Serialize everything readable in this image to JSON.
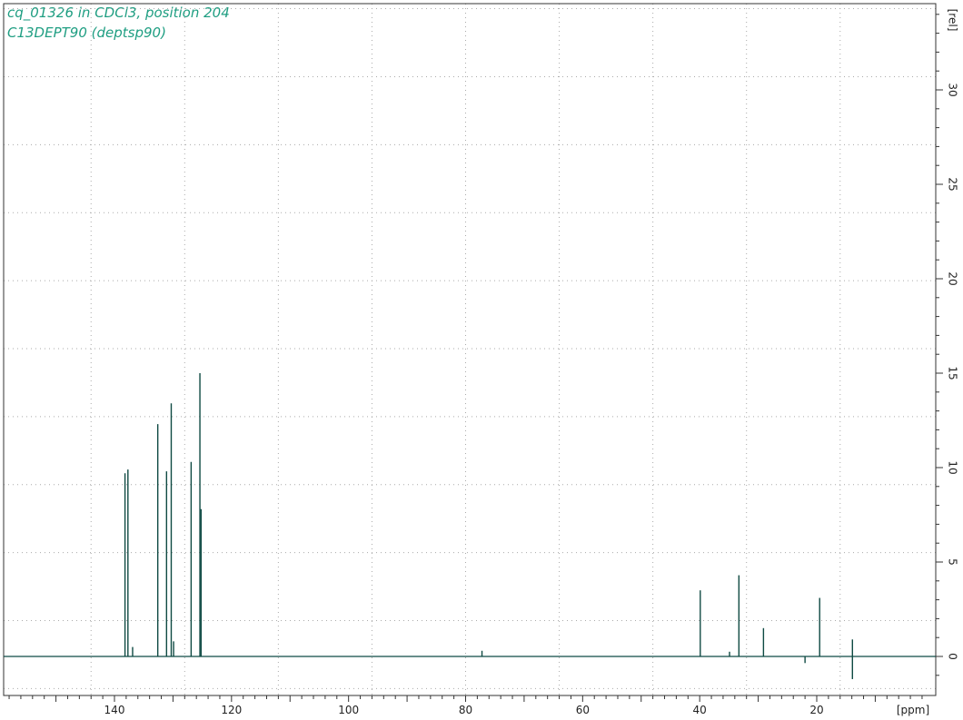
{
  "chart_data": {
    "type": "line",
    "title": [
      "cq_01326 in CDCl3, position 204",
      "C13DEPT90 (deptsp90)"
    ],
    "xlabel": "[ppm]",
    "ylabel": "[rel]",
    "xlim": [
      158,
      2
    ],
    "ylim": [
      -1.2,
      34.5
    ],
    "x_ticks": [
      140,
      120,
      100,
      80,
      60,
      40,
      20
    ],
    "y_ticks": [
      0,
      5,
      10,
      15,
      20,
      25,
      30
    ],
    "grid": true,
    "colors": {
      "spectrum": "#0f4a43",
      "title": "#1f9e82",
      "axis": "#333333",
      "grid": "#aaaaaa"
    },
    "peaks": [
      {
        "x": 138.2,
        "y": 9.7
      },
      {
        "x": 137.7,
        "y": 9.9
      },
      {
        "x": 136.9,
        "y": 0.5
      },
      {
        "x": 132.6,
        "y": 12.3
      },
      {
        "x": 131.1,
        "y": 9.8
      },
      {
        "x": 130.3,
        "y": 13.4
      },
      {
        "x": 129.9,
        "y": 0.8
      },
      {
        "x": 126.9,
        "y": 10.3
      },
      {
        "x": 125.4,
        "y": 15.0
      },
      {
        "x": 125.2,
        "y": 7.8
      },
      {
        "x": 77.2,
        "y": 0.3
      },
      {
        "x": 39.9,
        "y": 3.5
      },
      {
        "x": 34.9,
        "y": 0.25
      },
      {
        "x": 33.3,
        "y": 4.3
      },
      {
        "x": 29.1,
        "y": 1.5
      },
      {
        "x": 22.0,
        "y": -0.35
      },
      {
        "x": 19.5,
        "y": 3.1
      },
      {
        "x": 13.9,
        "y": 0.9
      },
      {
        "x": 13.9,
        "y": -1.2
      }
    ]
  }
}
